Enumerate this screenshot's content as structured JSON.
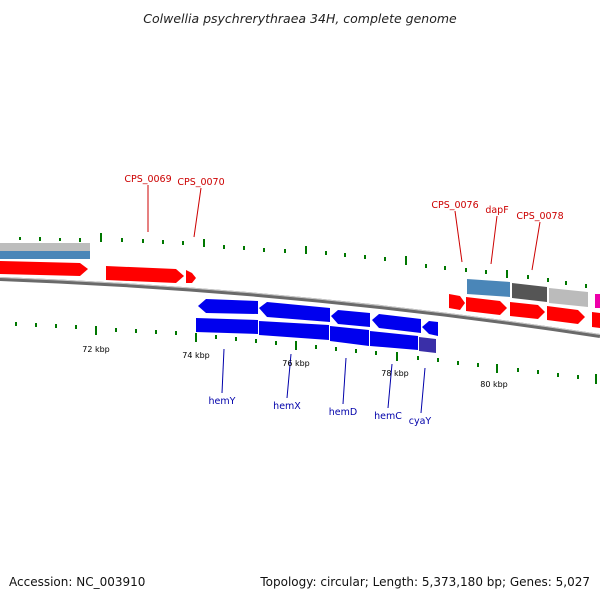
{
  "title": "Colwellia psychrerythraea 34H, complete genome",
  "footer": {
    "accession": "Accession: NC_003910",
    "stats": "Topology: circular; Length: 5,373,180 bp; Genes: 5,027"
  },
  "colors": {
    "forward_gene": "#ff0000",
    "reverse_gene": "#0000ee",
    "forward_label": "#cc0000",
    "reverse_label": "#0000aa",
    "tick": "#007700",
    "backbone": "#777777"
  },
  "scale_labels": [
    {
      "text": "72 kbp",
      "kbp": 72
    },
    {
      "text": "74 kbp",
      "kbp": 74
    },
    {
      "text": "76 kbp",
      "kbp": 76
    },
    {
      "text": "78 kbp",
      "kbp": 78
    },
    {
      "text": "80 kbp",
      "kbp": 80
    }
  ],
  "gene_labels": [
    {
      "text": "CPS_0069",
      "strand": "forward"
    },
    {
      "text": "CPS_0070",
      "strand": "forward"
    },
    {
      "text": "CPS_0076",
      "strand": "forward"
    },
    {
      "text": "dapF",
      "strand": "forward"
    },
    {
      "text": "CPS_0078",
      "strand": "forward"
    },
    {
      "text": "hemY",
      "strand": "reverse"
    },
    {
      "text": "hemX",
      "strand": "reverse"
    },
    {
      "text": "hemD",
      "strand": "reverse"
    },
    {
      "text": "hemC",
      "strand": "reverse"
    },
    {
      "text": "cyaY",
      "strand": "reverse"
    }
  ]
}
